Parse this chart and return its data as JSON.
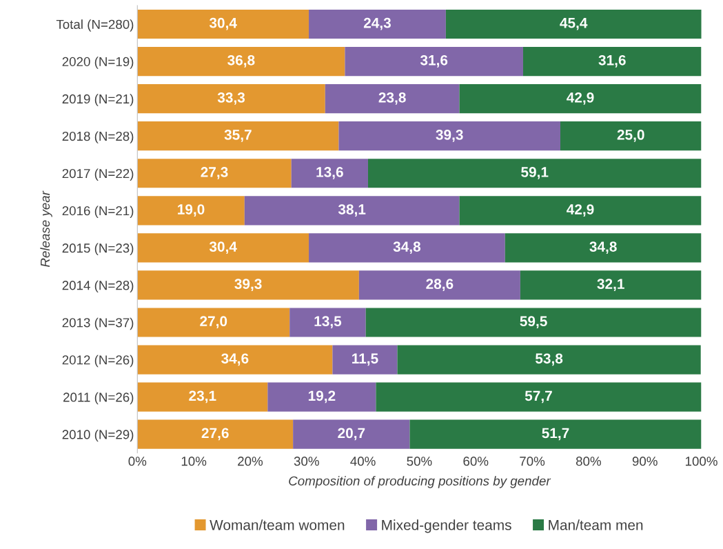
{
  "chart_data": {
    "type": "bar",
    "orientation": "horizontal",
    "stacked": true,
    "xlabel": "Composition of producing positions by gender",
    "ylabel": "Release year",
    "categories": [
      "Total (N=280)",
      "2020 (N=19)",
      "2019 (N=21)",
      "2018 (N=28)",
      "2017 (N=22)",
      "2016 (N=21)",
      "2015 (N=23)",
      "2014 (N=28)",
      "2013 (N=37)",
      "2012 (N=26)",
      "2011 (N=26)",
      "2010 (N=29)"
    ],
    "series": [
      {
        "name": "Woman/team women",
        "color": "#e39830",
        "values": [
          30.4,
          36.8,
          33.3,
          35.7,
          27.3,
          19.0,
          30.4,
          39.3,
          27.0,
          34.6,
          23.1,
          27.6
        ],
        "value_labels": [
          "30,4",
          "36,8",
          "33,3",
          "35,7",
          "27,3",
          "19,0",
          "30,4",
          "39,3",
          "27,0",
          "34,6",
          "23,1",
          "27,6"
        ]
      },
      {
        "name": "Mixed-gender teams",
        "color": "#8167a9",
        "values": [
          24.3,
          31.6,
          23.8,
          39.3,
          13.6,
          38.1,
          34.8,
          28.6,
          13.5,
          11.5,
          19.2,
          20.7
        ],
        "value_labels": [
          "24,3",
          "31,6",
          "23,8",
          "39,3",
          "13,6",
          "38,1",
          "34,8",
          "28,6",
          "13,5",
          "11,5",
          "19,2",
          "20,7"
        ]
      },
      {
        "name": "Man/team men",
        "color": "#2a7a45",
        "values": [
          45.4,
          31.6,
          42.9,
          25.0,
          59.1,
          42.9,
          34.8,
          32.1,
          59.5,
          53.8,
          57.7,
          51.7
        ],
        "value_labels": [
          "45,4",
          "31,6",
          "42,9",
          "25,0",
          "59,1",
          "42,9",
          "34,8",
          "32,1",
          "59,5",
          "53,8",
          "57,7",
          "51,7"
        ]
      }
    ],
    "xlim": [
      0,
      100
    ],
    "xticks": [
      {
        "value": 0,
        "label": "0%"
      },
      {
        "value": 10,
        "label": "10%"
      },
      {
        "value": 20,
        "label": "20%"
      },
      {
        "value": 30,
        "label": "30%"
      },
      {
        "value": 40,
        "label": "40%"
      },
      {
        "value": 50,
        "label": "50%"
      },
      {
        "value": 60,
        "label": "60%"
      },
      {
        "value": 70,
        "label": "70%"
      },
      {
        "value": 80,
        "label": "80%"
      },
      {
        "value": 90,
        "label": "90%"
      },
      {
        "value": 100,
        "label": "100%"
      }
    ],
    "grid": false,
    "legend": "bottom"
  }
}
